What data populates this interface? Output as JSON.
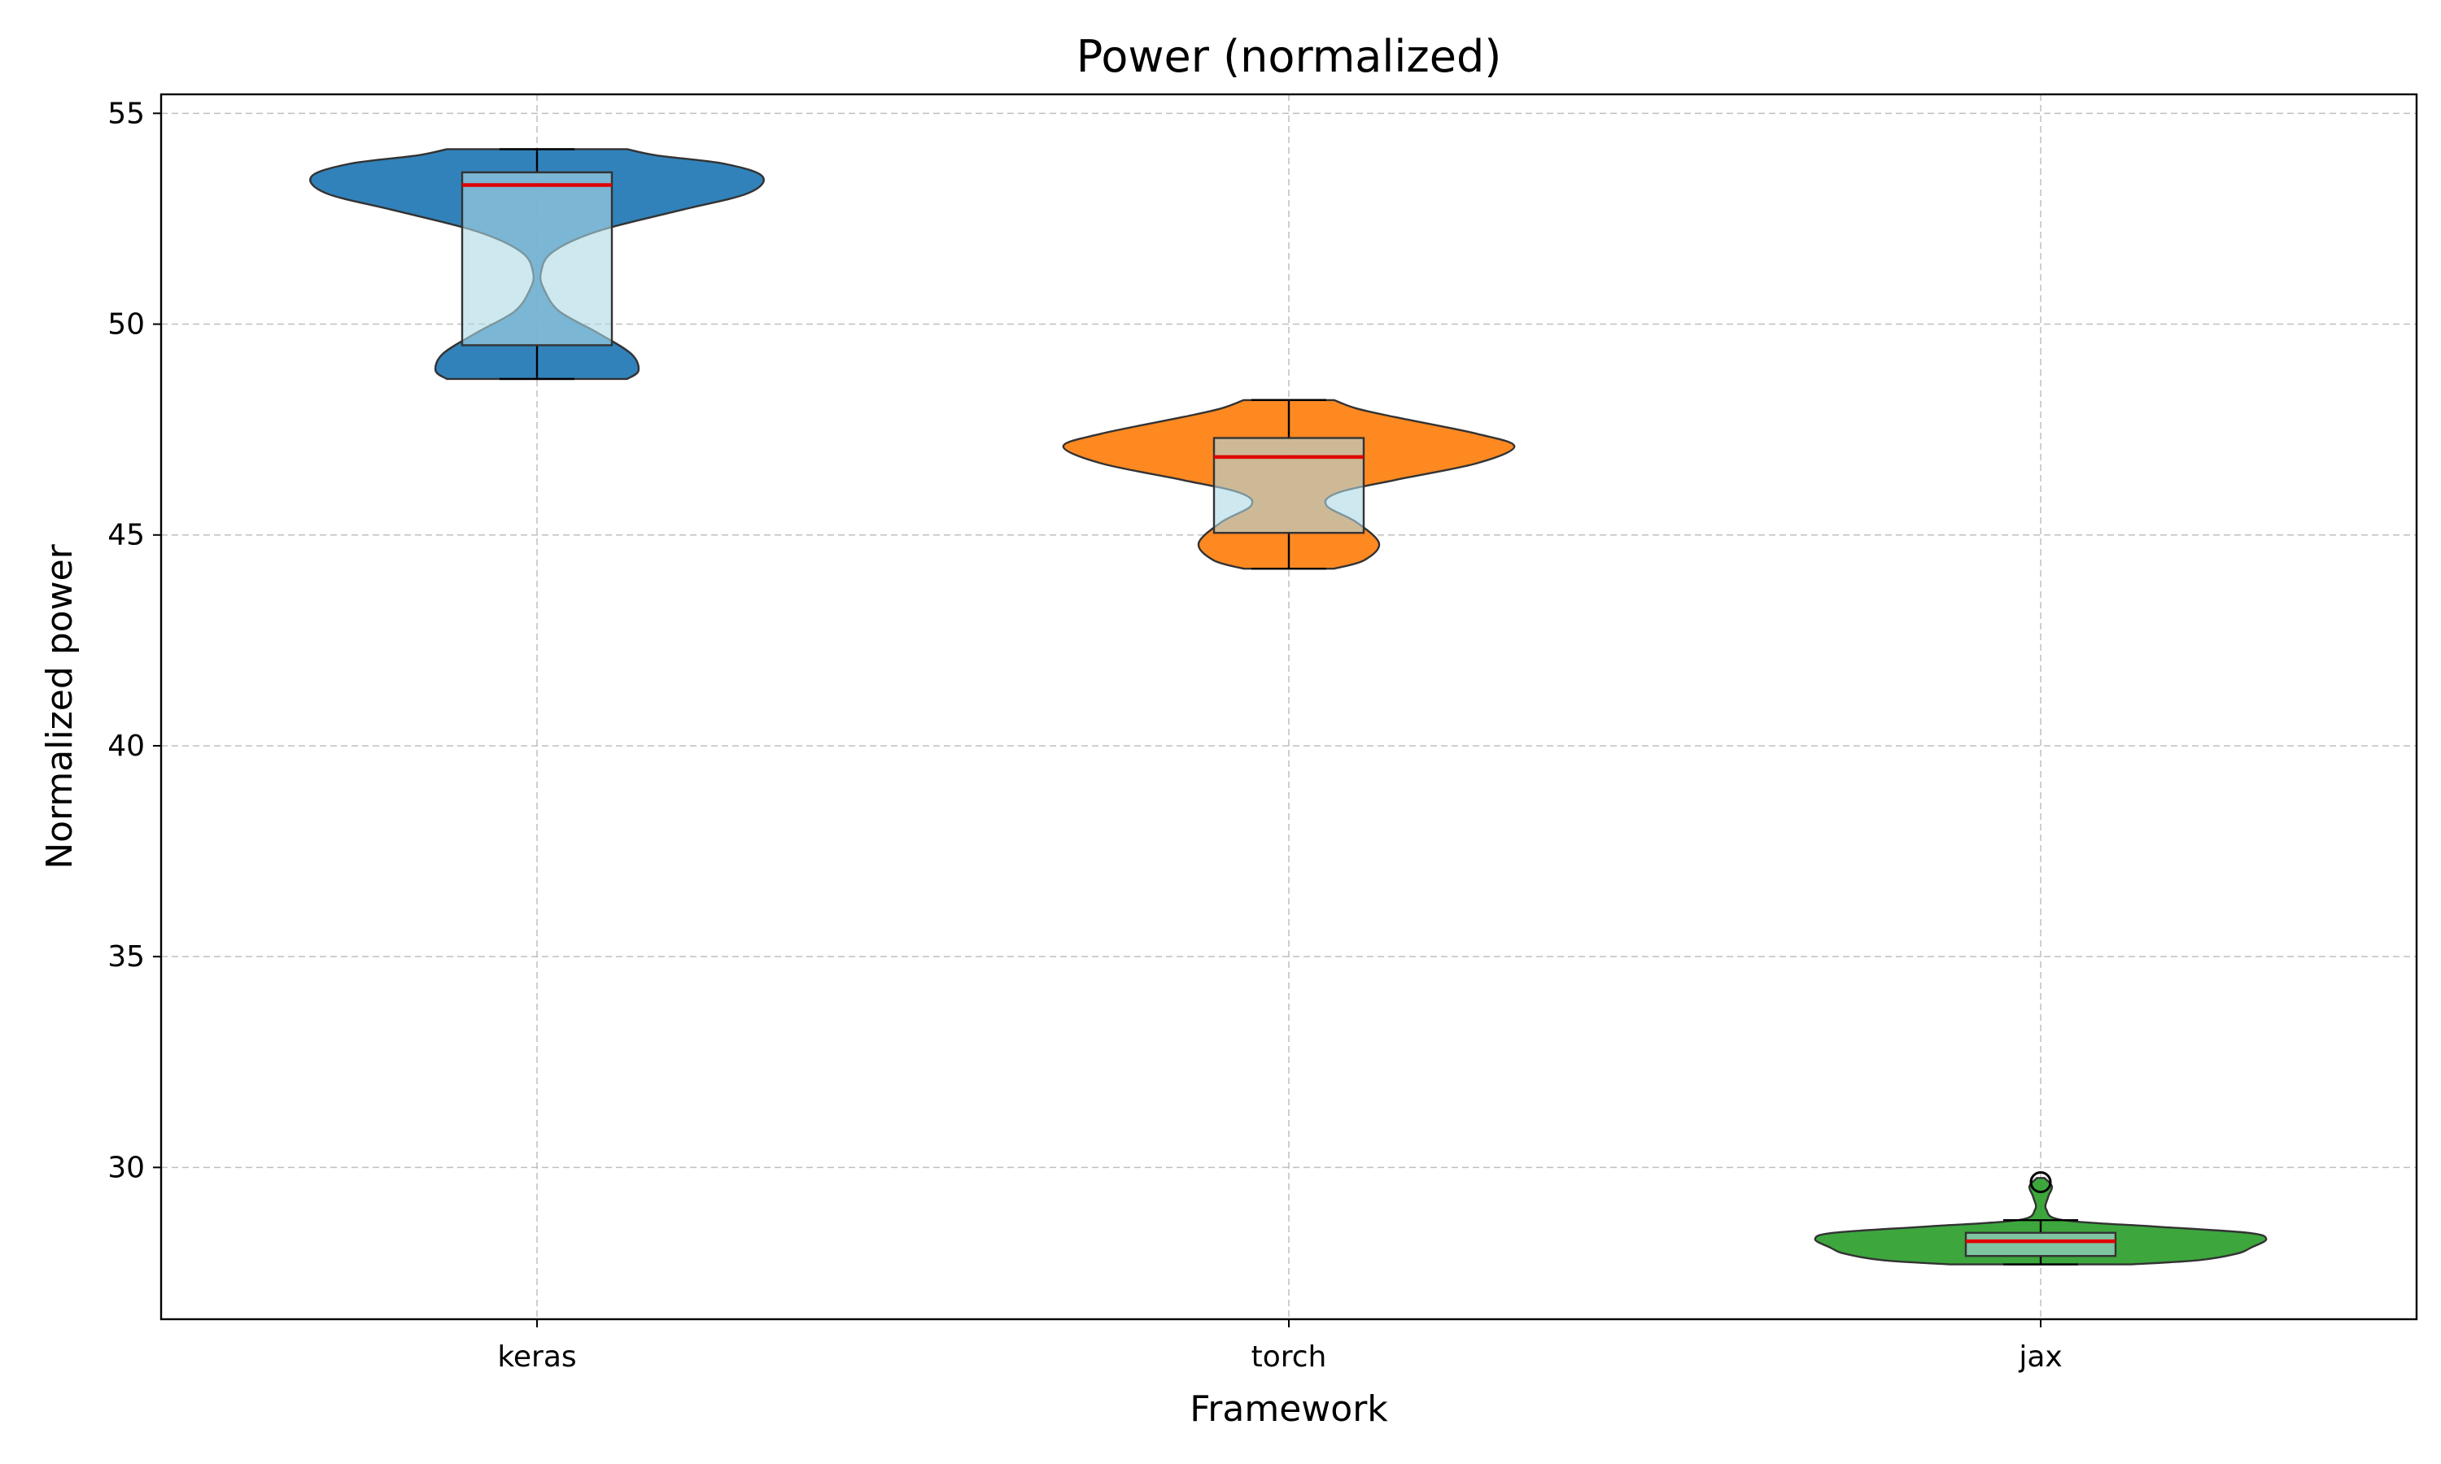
{
  "chart_data": {
    "type": "violin",
    "title": "Power (normalized)",
    "xlabel": "Framework",
    "ylabel": "Normalized power",
    "categories": [
      "keras",
      "torch",
      "jax"
    ],
    "ylim": [
      26.4,
      55.45
    ],
    "yticks": [
      30,
      35,
      40,
      45,
      50,
      55
    ],
    "grid": true,
    "series": [
      {
        "category": "keras",
        "color": "#1f77b4",
        "min": 48.7,
        "q1": 49.5,
        "median": 53.3,
        "q3": 53.6,
        "max": 54.15,
        "outliers": [],
        "density": [
          [
            48.7,
            0.24
          ],
          [
            48.9,
            0.27
          ],
          [
            49.3,
            0.25
          ],
          [
            49.8,
            0.16
          ],
          [
            50.3,
            0.06
          ],
          [
            50.8,
            0.02
          ],
          [
            51.2,
            0.01
          ],
          [
            51.7,
            0.04
          ],
          [
            52.2,
            0.16
          ],
          [
            52.7,
            0.38
          ],
          [
            53.1,
            0.56
          ],
          [
            53.5,
            0.6
          ],
          [
            53.8,
            0.5
          ],
          [
            54.0,
            0.32
          ],
          [
            54.15,
            0.24
          ]
        ]
      },
      {
        "category": "torch",
        "color": "#ff7f0e",
        "min": 44.2,
        "q1": 45.05,
        "median": 46.85,
        "q3": 47.3,
        "max": 48.2,
        "outliers": [],
        "density": [
          [
            44.2,
            0.12
          ],
          [
            44.4,
            0.2
          ],
          [
            44.8,
            0.24
          ],
          [
            45.3,
            0.18
          ],
          [
            45.7,
            0.1
          ],
          [
            46.0,
            0.13
          ],
          [
            46.3,
            0.28
          ],
          [
            46.7,
            0.5
          ],
          [
            47.1,
            0.6
          ],
          [
            47.4,
            0.5
          ],
          [
            47.8,
            0.28
          ],
          [
            48.0,
            0.18
          ],
          [
            48.2,
            0.12
          ]
        ]
      },
      {
        "category": "jax",
        "color": "#2ca02c",
        "min": 27.7,
        "q1": 27.9,
        "median": 28.25,
        "q3": 28.45,
        "max": 28.75,
        "outliers": [
          29.65
        ],
        "density": [
          [
            27.7,
            0.24
          ],
          [
            27.8,
            0.42
          ],
          [
            27.95,
            0.52
          ],
          [
            28.1,
            0.56
          ],
          [
            28.3,
            0.6
          ],
          [
            28.45,
            0.55
          ],
          [
            28.6,
            0.3
          ],
          [
            28.75,
            0.06
          ],
          [
            29.0,
            0.015
          ],
          [
            29.3,
            0.02
          ],
          [
            29.55,
            0.03
          ],
          [
            29.75,
            0.01
          ]
        ]
      }
    ]
  }
}
